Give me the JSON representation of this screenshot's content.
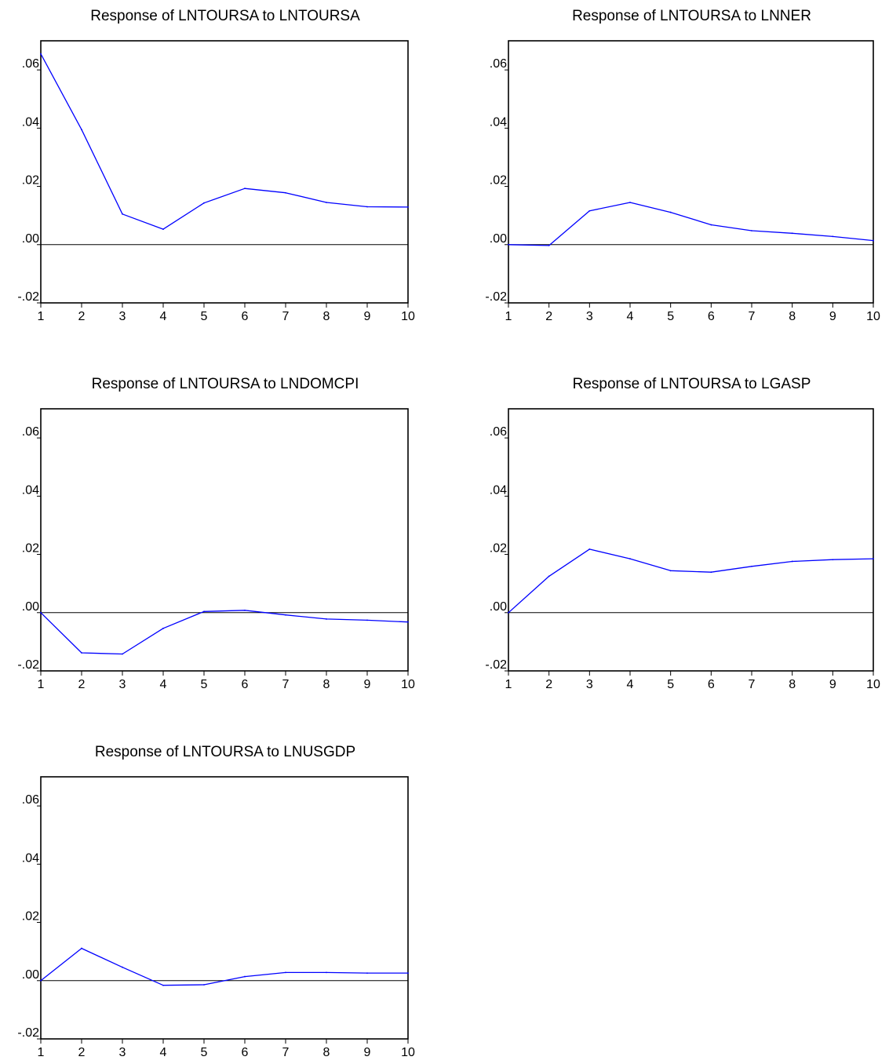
{
  "chart_data": [
    {
      "type": "line",
      "title": "Response of LNTOURSA to LNTOURSA",
      "x": [
        1,
        2,
        3,
        4,
        5,
        6,
        7,
        8,
        9,
        10
      ],
      "series": [
        {
          "values": [
            0.0655,
            0.0395,
            0.0105,
            0.0053,
            0.0143,
            0.0193,
            0.0178,
            0.0145,
            0.013,
            0.0129
          ]
        }
      ],
      "xlim": [
        1,
        10
      ],
      "ylim": [
        -0.02,
        0.07
      ],
      "x_ticks": [
        "1",
        "2",
        "3",
        "4",
        "5",
        "6",
        "7",
        "8",
        "9",
        "10"
      ],
      "y_ticks": [
        {
          "value": 0.06,
          "label": ".06"
        },
        {
          "value": 0.04,
          "label": ".04"
        },
        {
          "value": 0.02,
          "label": ".02"
        },
        {
          "value": 0.0,
          "label": ".00"
        },
        {
          "value": -0.02,
          "label": "-.02"
        }
      ],
      "zero_line": true,
      "grid": false,
      "line_color": "#0000ff"
    },
    {
      "type": "line",
      "title": "Response of LNTOURSA to LNNER",
      "x": [
        1,
        2,
        3,
        4,
        5,
        6,
        7,
        8,
        9,
        10
      ],
      "series": [
        {
          "values": [
            0.0,
            -0.0003,
            0.0116,
            0.0145,
            0.0111,
            0.0068,
            0.0048,
            0.0039,
            0.0028,
            0.0014
          ]
        }
      ],
      "xlim": [
        1,
        10
      ],
      "ylim": [
        -0.02,
        0.07
      ],
      "x_ticks": [
        "1",
        "2",
        "3",
        "4",
        "5",
        "6",
        "7",
        "8",
        "9",
        "10"
      ],
      "y_ticks": [
        {
          "value": 0.06,
          "label": ".06"
        },
        {
          "value": 0.04,
          "label": ".04"
        },
        {
          "value": 0.02,
          "label": ".02"
        },
        {
          "value": 0.0,
          "label": ".00"
        },
        {
          "value": -0.02,
          "label": "-.02"
        }
      ],
      "zero_line": true,
      "grid": false,
      "line_color": "#0000ff"
    },
    {
      "type": "line",
      "title": "Response of LNTOURSA to LNDOMCPI",
      "x": [
        1,
        2,
        3,
        4,
        5,
        6,
        7,
        8,
        9,
        10
      ],
      "series": [
        {
          "values": [
            0.0,
            -0.0138,
            -0.0142,
            -0.0054,
            0.0004,
            0.0008,
            -0.0008,
            -0.0022,
            -0.0026,
            -0.0032
          ]
        }
      ],
      "xlim": [
        1,
        10
      ],
      "ylim": [
        -0.02,
        0.07
      ],
      "x_ticks": [
        "1",
        "2",
        "3",
        "4",
        "5",
        "6",
        "7",
        "8",
        "9",
        "10"
      ],
      "y_ticks": [
        {
          "value": 0.06,
          "label": ".06"
        },
        {
          "value": 0.04,
          "label": ".04"
        },
        {
          "value": 0.02,
          "label": ".02"
        },
        {
          "value": 0.0,
          "label": ".00"
        },
        {
          "value": -0.02,
          "label": "-.02"
        }
      ],
      "zero_line": true,
      "grid": false,
      "line_color": "#0000ff"
    },
    {
      "type": "line",
      "title": "Response of LNTOURSA to LGASP",
      "x": [
        1,
        2,
        3,
        4,
        5,
        6,
        7,
        8,
        9,
        10
      ],
      "series": [
        {
          "values": [
            0.0,
            0.0125,
            0.0218,
            0.0185,
            0.0144,
            0.0139,
            0.0159,
            0.0176,
            0.0182,
            0.0185
          ]
        }
      ],
      "xlim": [
        1,
        10
      ],
      "ylim": [
        -0.02,
        0.07
      ],
      "x_ticks": [
        "1",
        "2",
        "3",
        "4",
        "5",
        "6",
        "7",
        "8",
        "9",
        "10"
      ],
      "y_ticks": [
        {
          "value": 0.06,
          "label": ".06"
        },
        {
          "value": 0.04,
          "label": ".04"
        },
        {
          "value": 0.02,
          "label": ".02"
        },
        {
          "value": 0.0,
          "label": ".00"
        },
        {
          "value": -0.02,
          "label": "-.02"
        }
      ],
      "zero_line": true,
      "grid": false,
      "line_color": "#0000ff"
    },
    {
      "type": "line",
      "title": "Response of LNTOURSA to LNUSGDP",
      "x": [
        1,
        2,
        3,
        4,
        5,
        6,
        7,
        8,
        9,
        10
      ],
      "series": [
        {
          "values": [
            0.0,
            0.0111,
            0.0046,
            -0.0016,
            -0.0014,
            0.0014,
            0.0028,
            0.0028,
            0.0026,
            0.0026
          ]
        }
      ],
      "xlim": [
        1,
        10
      ],
      "ylim": [
        -0.02,
        0.07
      ],
      "x_ticks": [
        "1",
        "2",
        "3",
        "4",
        "5",
        "6",
        "7",
        "8",
        "9",
        "10"
      ],
      "y_ticks": [
        {
          "value": 0.06,
          "label": ".06"
        },
        {
          "value": 0.04,
          "label": ".04"
        },
        {
          "value": 0.02,
          "label": ".02"
        },
        {
          "value": 0.0,
          "label": ".00"
        },
        {
          "value": -0.02,
          "label": "-.02"
        }
      ],
      "zero_line": true,
      "grid": false,
      "line_color": "#0000ff"
    }
  ]
}
